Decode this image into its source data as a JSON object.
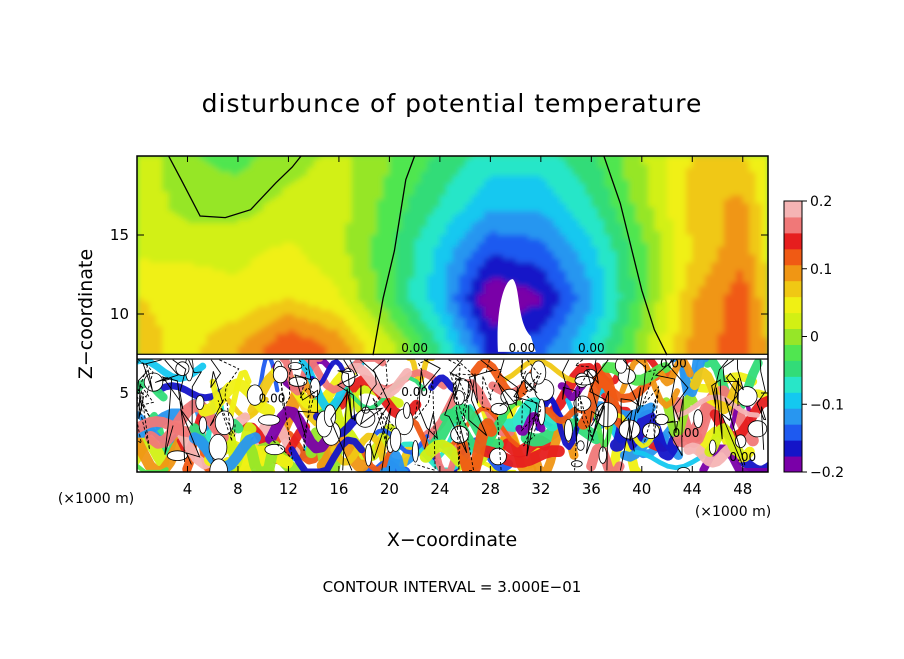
{
  "chart_data": {
    "type": "heatmap",
    "title": "disturbunce of potential temperature",
    "xlabel": "X−coordinate",
    "ylabel": "Z−coordinate",
    "x_unit_label": "(×1000 m)",
    "y_unit_label": "(×1000 m)",
    "xlim": [
      0,
      50
    ],
    "ylim": [
      0,
      20
    ],
    "x_ticks": [
      4,
      8,
      12,
      16,
      20,
      24,
      28,
      32,
      36,
      40,
      44,
      48
    ],
    "x_tick_labels": [
      "4",
      "8",
      "12",
      "16",
      "20",
      "24",
      "28",
      "32",
      "36",
      "40",
      "44",
      "48"
    ],
    "y_ticks": [
      5,
      10,
      15
    ],
    "y_tick_labels": [
      "5",
      "10",
      "15"
    ],
    "contour_interval_text": "CONTOUR INTERVAL = 3.000E−01",
    "colorbar": {
      "min": -0.2,
      "max": 0.2,
      "ticks": [
        0.2,
        0.1,
        0,
        -0.1,
        -0.2
      ],
      "tick_labels": [
        "0.2",
        "0.1",
        "0",
        "−0.1",
        "−0.2"
      ],
      "colors": [
        "#7a00a8",
        "#1414c8",
        "#1e5af0",
        "#2896f0",
        "#14c8f0",
        "#28e6c8",
        "#32dc78",
        "#50e650",
        "#96e628",
        "#d2f014",
        "#f0f014",
        "#f0c814",
        "#f09614",
        "#f05a14",
        "#e61e1e",
        "#f07878",
        "#f5b4b4"
      ]
    },
    "contour_labels": [
      "0.00",
      "0.00",
      "0.00",
      "0.00",
      "0.00",
      "0.00",
      "0.00",
      "0.00"
    ],
    "upper_layer_field": {
      "x": [
        0,
        4,
        8,
        12,
        16,
        20,
        24,
        28,
        32,
        36,
        40,
        44,
        48,
        50
      ],
      "z": [
        8,
        11,
        14,
        17,
        20
      ],
      "values": [
        [
          0.07,
          0.05,
          0.08,
          0.13,
          0.1,
          0.02,
          -0.06,
          -0.16,
          -0.14,
          -0.08,
          0.0,
          0.09,
          0.12,
          0.08
        ],
        [
          0.06,
          0.05,
          0.04,
          0.06,
          0.04,
          -0.03,
          -0.1,
          -0.2,
          -0.18,
          -0.11,
          -0.02,
          0.08,
          0.12,
          0.06
        ],
        [
          0.03,
          0.03,
          0.03,
          0.04,
          0.02,
          -0.03,
          -0.09,
          -0.15,
          -0.14,
          -0.09,
          -0.02,
          0.06,
          0.1,
          0.05
        ],
        [
          0.03,
          0.0,
          0.0,
          0.02,
          0.02,
          -0.02,
          -0.06,
          -0.1,
          -0.1,
          -0.06,
          0.0,
          0.07,
          0.09,
          0.04
        ],
        [
          0.03,
          -0.01,
          -0.02,
          0.0,
          0.02,
          -0.01,
          -0.04,
          -0.07,
          -0.07,
          -0.04,
          0.01,
          0.06,
          0.06,
          0.04
        ]
      ]
    },
    "lower_layer": "turbulent mixed pattern of alternating positive and negative anomalies below z ≈ 7.3"
  }
}
